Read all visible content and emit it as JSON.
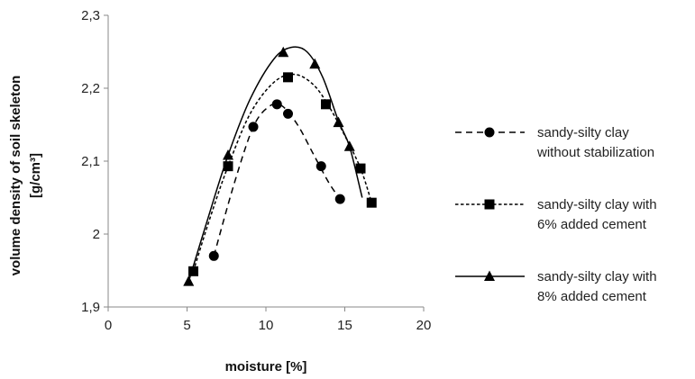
{
  "chart_data": {
    "type": "scatter",
    "title": "",
    "xlabel": "moisture [%]",
    "ylabel_line1": "volume density of soil skeleton",
    "ylabel_line2": "[g/cm³]",
    "xlim": [
      0,
      20
    ],
    "ylim": [
      1.9,
      2.3
    ],
    "xticks": [
      0,
      5,
      10,
      15,
      20
    ],
    "xtick_labels": [
      "0",
      "5",
      "10",
      "15",
      "20"
    ],
    "yticks": [
      1.9,
      2.0,
      2.1,
      2.2,
      2.3
    ],
    "ytick_labels": [
      "1,9",
      "2",
      "2,1",
      "2,2",
      "2,3"
    ],
    "grid": false,
    "legend_position": "right",
    "series": [
      {
        "legend_line1": "sandy-silty clay",
        "legend_line2": "without stabilization",
        "marker": "circle",
        "line_style": "dashed",
        "color": "#000000",
        "points": [
          [
            6.7,
            1.97
          ],
          [
            9.2,
            2.147
          ],
          [
            10.7,
            2.178
          ],
          [
            11.4,
            2.165
          ],
          [
            13.5,
            2.093
          ],
          [
            14.7,
            2.048
          ]
        ],
        "curve": [
          [
            6.7,
            1.97
          ],
          [
            8.0,
            2.07
          ],
          [
            9.2,
            2.147
          ],
          [
            10.2,
            2.175
          ],
          [
            11.0,
            2.176
          ],
          [
            12.0,
            2.15
          ],
          [
            13.0,
            2.11
          ],
          [
            14.0,
            2.07
          ],
          [
            14.7,
            2.048
          ]
        ]
      },
      {
        "legend_line1": "sandy-silty clay with",
        "legend_line2": "6% added cement",
        "marker": "square",
        "line_style": "dotted",
        "color": "#000000",
        "points": [
          [
            5.4,
            1.949
          ],
          [
            7.6,
            2.093
          ],
          [
            11.4,
            2.215
          ],
          [
            13.8,
            2.178
          ],
          [
            16.0,
            2.09
          ],
          [
            16.7,
            2.043
          ]
        ],
        "curve": [
          [
            5.4,
            1.949
          ],
          [
            6.5,
            2.025
          ],
          [
            7.6,
            2.093
          ],
          [
            9.0,
            2.165
          ],
          [
            10.5,
            2.208
          ],
          [
            11.8,
            2.219
          ],
          [
            13.0,
            2.205
          ],
          [
            14.0,
            2.175
          ],
          [
            15.0,
            2.135
          ],
          [
            16.0,
            2.09
          ],
          [
            16.7,
            2.043
          ]
        ]
      },
      {
        "legend_line1": "sandy-silty clay with",
        "legend_line2": "8% added cement",
        "marker": "triangle",
        "line_style": "solid",
        "color": "#000000",
        "points": [
          [
            5.1,
            1.935
          ],
          [
            7.6,
            2.108
          ],
          [
            11.1,
            2.249
          ],
          [
            13.1,
            2.233
          ],
          [
            14.6,
            2.153
          ],
          [
            15.3,
            2.12
          ]
        ],
        "curve": [
          [
            5.1,
            1.935
          ],
          [
            6.3,
            2.02
          ],
          [
            7.6,
            2.108
          ],
          [
            9.0,
            2.185
          ],
          [
            10.5,
            2.24
          ],
          [
            11.6,
            2.256
          ],
          [
            12.6,
            2.25
          ],
          [
            13.6,
            2.215
          ],
          [
            14.6,
            2.155
          ],
          [
            15.3,
            2.12
          ],
          [
            16.1,
            2.05
          ]
        ]
      }
    ]
  }
}
